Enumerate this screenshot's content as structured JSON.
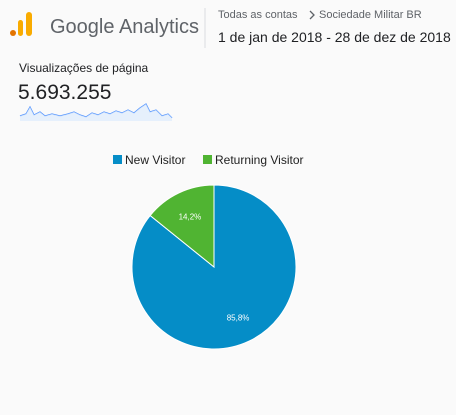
{
  "header": {
    "product": "Google Analytics",
    "account": "Todas as contas",
    "property": "Sociedade Militar BR",
    "date_range": "1 de jan de 2018 - 28 de dez de 2018"
  },
  "metric": {
    "label": "Visualizações de página",
    "value": "5.693.255"
  },
  "chart_data": {
    "type": "pie",
    "categories": [
      "New Visitor",
      "Returning Visitor"
    ],
    "values": [
      85.8,
      14.2
    ],
    "value_labels": [
      "85,8%",
      "14,2%"
    ],
    "colors": [
      "#058dc7",
      "#50b432"
    ],
    "legend": "top"
  }
}
